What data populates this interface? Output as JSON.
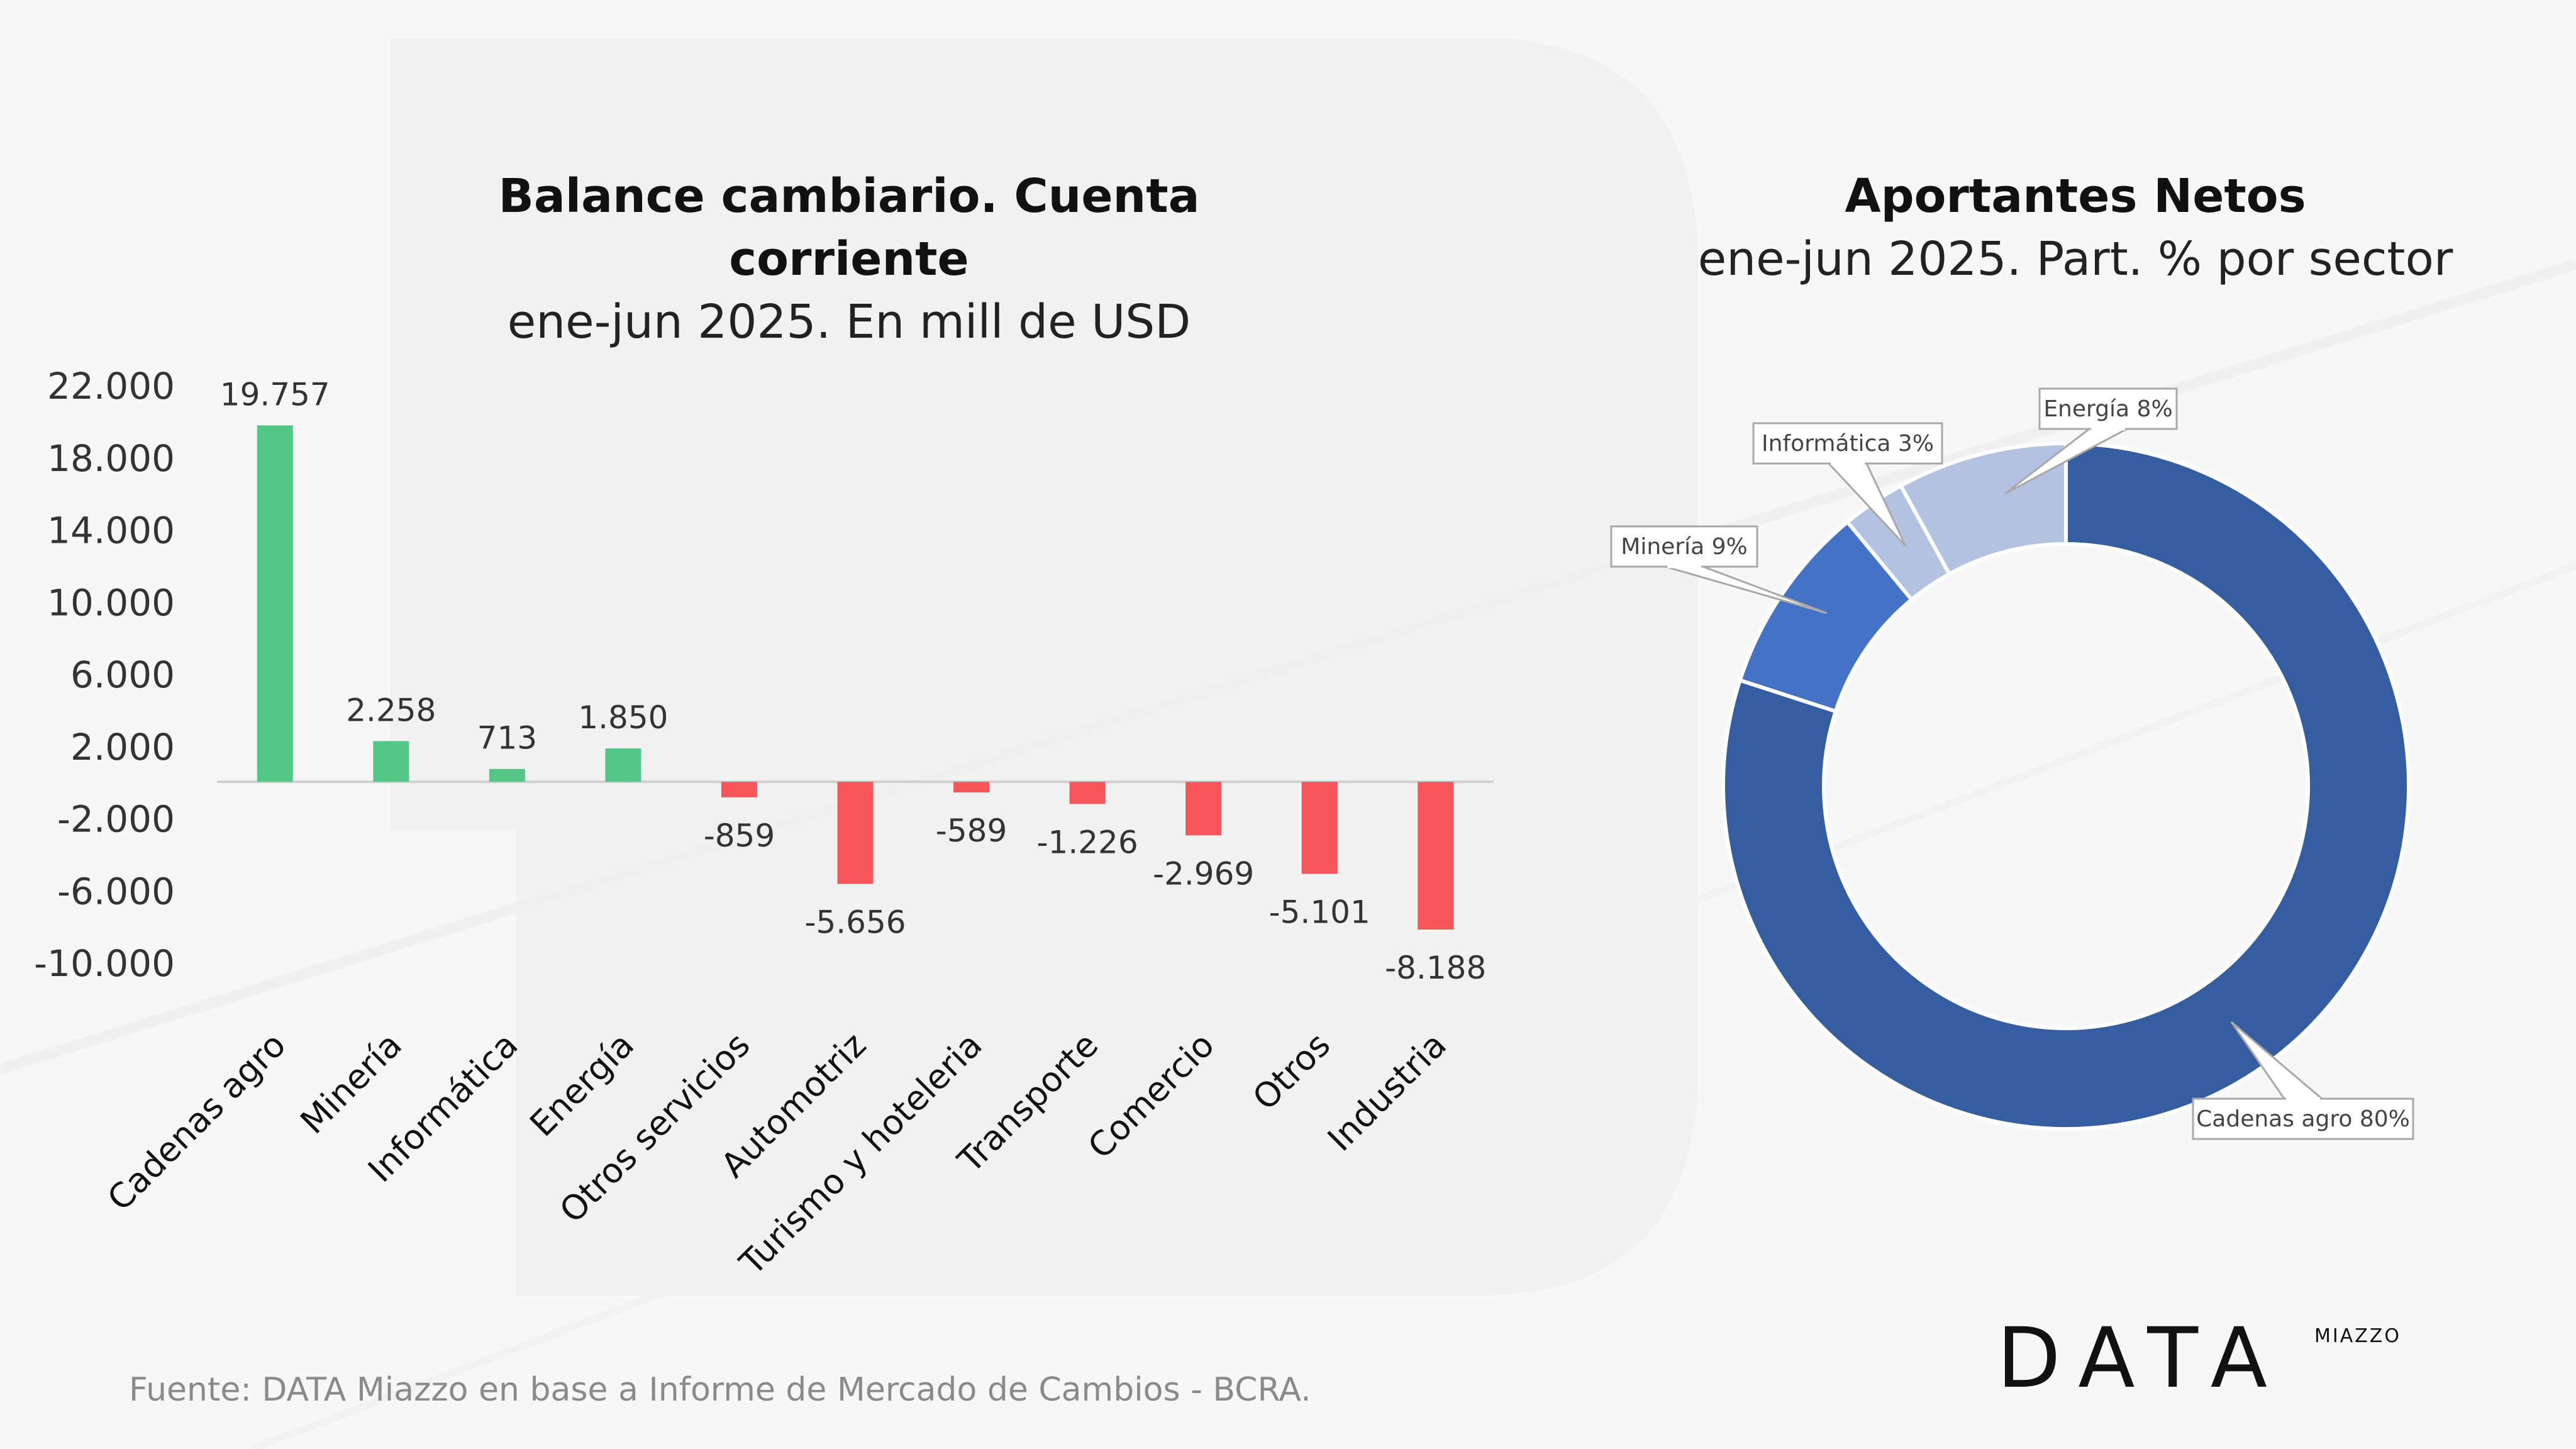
{
  "source_note": "Fuente: DATA Miazzo en base a Informe de Mercado de Cambios - BCRA.",
  "logo": {
    "word": "DATA",
    "mini": "MIAZZO"
  },
  "colors": {
    "positive": "#52c787",
    "negative": "#f7555a",
    "donut_main": "#345ea0",
    "donut_mineria": "#4472c4",
    "donut_light": "#b4c2e2",
    "axis": "#cfcfcf"
  },
  "chart_data": [
    {
      "type": "bar",
      "title": "Balance cambiario. Cuenta corriente",
      "subtitle": "ene-jun 2025. En mill de USD",
      "categories": [
        "Cadenas agro",
        "Minería",
        "Informática",
        "Energía",
        "Otros servicios",
        "Automotriz",
        "Turismo y hoteleria",
        "Transporte",
        "Comercio",
        "Otros",
        "Industria"
      ],
      "values": [
        19757,
        2258,
        713,
        1850,
        -859,
        -5656,
        -589,
        -1226,
        -2969,
        -5101,
        -8188
      ],
      "value_labels": [
        "19.757",
        "2.258",
        "713",
        "1.850",
        "-859",
        "-5.656",
        "-589",
        "-1.226",
        "-2.969",
        "-5.101",
        "-8.188"
      ],
      "y_ticks": [
        22000,
        18000,
        14000,
        10000,
        6000,
        2000,
        -2000,
        -6000,
        -10000
      ],
      "y_tick_labels": [
        "22.000",
        "18.000",
        "14.000",
        "10.000",
        "6.000",
        "2.000",
        "-2.000",
        "-6.000",
        "-10.000"
      ],
      "ylim": [
        -10000,
        22000
      ],
      "xlabel": "",
      "ylabel": "",
      "grid": false
    },
    {
      "type": "pie",
      "variant": "donut",
      "title": "Aportantes Netos",
      "subtitle": "ene-jun 2025. Part. % por sector",
      "slices": [
        {
          "name": "Cadenas agro",
          "value": 80,
          "label": "Cadenas agro 80%",
          "color": "#345ea0"
        },
        {
          "name": "Minería",
          "value": 9,
          "label": "Minería  9%",
          "color": "#4472c4"
        },
        {
          "name": "Informática",
          "value": 3,
          "label": "Informática  3%",
          "color": "#b4c2e2"
        },
        {
          "name": "Energía",
          "value": 8,
          "label": "Energía 8%",
          "color": "#b4c2e2"
        }
      ],
      "legend": "none"
    }
  ]
}
